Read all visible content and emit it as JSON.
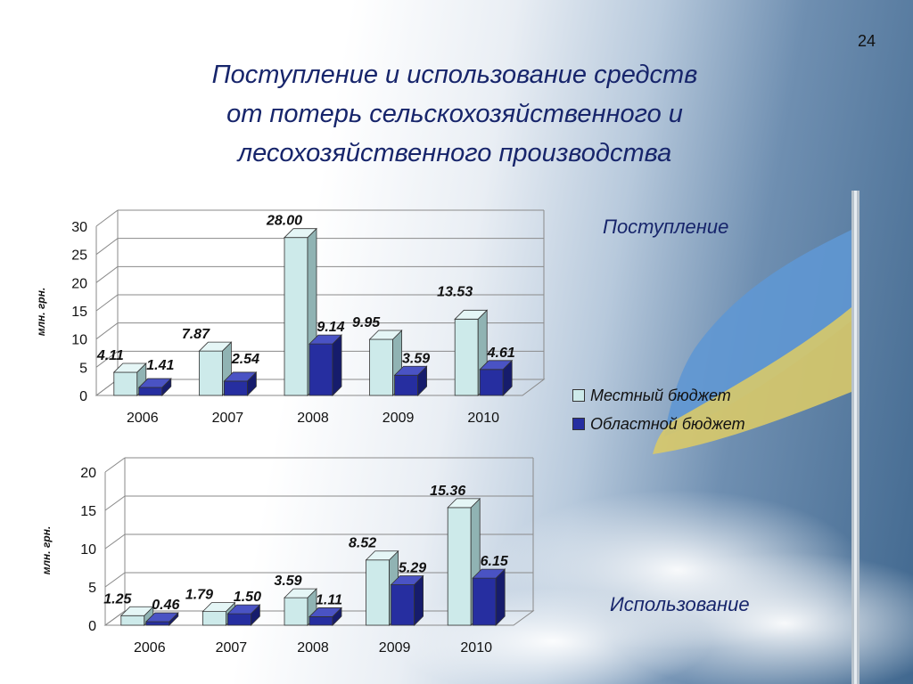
{
  "slide": {
    "page_number": "24",
    "title_lines": [
      "Поступление и использование средств",
      "от потерь сельскохозяйственного и",
      "лесохозяйственного производства"
    ]
  },
  "legend": {
    "items": [
      {
        "label": "Местный бюджет",
        "color": "#cdeaea"
      },
      {
        "label": "Областной бюджет",
        "color": "#262ea0"
      }
    ]
  },
  "colors": {
    "local_front": "#cdeaea",
    "local_side": "#90b3b3",
    "local_top": "#e5f6f6",
    "regional_front": "#262ea0",
    "regional_side": "#161c6c",
    "regional_top": "#4a53c4",
    "title": "#17256b"
  },
  "chart_data": [
    {
      "type": "bar",
      "panel_label": "Поступление",
      "ylabel": "млн. грн.",
      "ylim": [
        0,
        30
      ],
      "yticks": [
        0,
        5,
        10,
        15,
        20,
        25,
        30
      ],
      "categories": [
        "2006",
        "2007",
        "2008",
        "2009",
        "2010"
      ],
      "series": [
        {
          "name": "Местный бюджет",
          "values": [
            4.11,
            7.87,
            28.0,
            9.95,
            13.53
          ],
          "labels": [
            "4.11",
            "7.87",
            "28.00",
            "9.95",
            "13.53"
          ]
        },
        {
          "name": "Областной бюджет",
          "values": [
            1.41,
            2.54,
            9.14,
            3.59,
            4.61
          ],
          "labels": [
            "1.41",
            "2.54",
            "9.14",
            "3.59",
            "4.61"
          ]
        }
      ],
      "grid": true,
      "legend_position": "right"
    },
    {
      "type": "bar",
      "panel_label": "Использование",
      "ylabel": "млн. грн.",
      "ylim": [
        0,
        20
      ],
      "yticks": [
        0,
        5,
        10,
        15,
        20
      ],
      "categories": [
        "2006",
        "2007",
        "2008",
        "2009",
        "2010"
      ],
      "series": [
        {
          "name": "Местный бюджет",
          "values": [
            1.25,
            1.79,
            3.59,
            8.52,
            15.36
          ],
          "labels": [
            "1.25",
            "1.79",
            "3.59",
            "8.52",
            "15.36"
          ]
        },
        {
          "name": "Областной бюджет",
          "values": [
            0.46,
            1.5,
            1.11,
            5.29,
            6.15
          ],
          "labels": [
            "0.46",
            "1.50",
            "1.11",
            "5.29",
            "6.15"
          ]
        }
      ],
      "grid": true,
      "legend_position": "right"
    }
  ]
}
